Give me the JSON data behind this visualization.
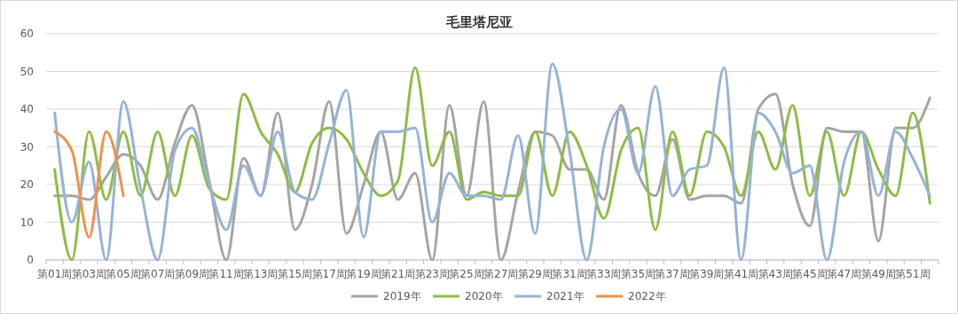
{
  "chart_data": {
    "type": "line",
    "title": "毛里塔尼亚",
    "categories": [
      "第01周",
      null,
      "第03周",
      null,
      "第05周",
      null,
      "第07周",
      null,
      "第09周",
      null,
      "第11周",
      null,
      "第13周",
      null,
      "第15周",
      null,
      "第17周",
      null,
      "第19周",
      null,
      "第21周",
      null,
      "第23周",
      null,
      "第25周",
      null,
      "第27周",
      null,
      "第29周",
      null,
      "第31周",
      null,
      "第33周",
      null,
      "第35周",
      null,
      "第37周",
      null,
      "第39周",
      null,
      "第41周",
      null,
      "第43周",
      null,
      "第45周",
      null,
      "第47周",
      null,
      "第49周",
      null,
      "第51周",
      null
    ],
    "series": [
      {
        "name": "2019年",
        "color": "#a5a5a5",
        "values": [
          17,
          17,
          16,
          22,
          28,
          25,
          16,
          31,
          41,
          21,
          0,
          27,
          17,
          39,
          8,
          20,
          42,
          7,
          20,
          34,
          16,
          23,
          0,
          41,
          17,
          42,
          0,
          18,
          34,
          33,
          24,
          24,
          16,
          41,
          23,
          17,
          32,
          16,
          17,
          17,
          15,
          40,
          44,
          20,
          9,
          35,
          34,
          34,
          5,
          35,
          35,
          43
        ]
      },
      {
        "name": "2020年",
        "color": "#8fbc45",
        "values": [
          24,
          0,
          34,
          16,
          34,
          17,
          34,
          17,
          33,
          19,
          16,
          44,
          34,
          28,
          18,
          31,
          35,
          32,
          23,
          17,
          21,
          51,
          25,
          34,
          16,
          18,
          17,
          17,
          34,
          17,
          34,
          25,
          11,
          29,
          35,
          8,
          34,
          17,
          34,
          30,
          17,
          34,
          24,
          41,
          17,
          34,
          17,
          34,
          24,
          17,
          39,
          15
        ]
      },
      {
        "name": "2021年",
        "color": "#95b3d7",
        "values": [
          39,
          10,
          26,
          0,
          42,
          19,
          0,
          29,
          35,
          20,
          8,
          25,
          17,
          34,
          18,
          16,
          31,
          45,
          6,
          34,
          34,
          35,
          10,
          23,
          17,
          17,
          16,
          33,
          7,
          52,
          29,
          0,
          30,
          40,
          23,
          46,
          17,
          24,
          25,
          51,
          0,
          39,
          34,
          23,
          25,
          0,
          26,
          34,
          17,
          34,
          27,
          17
        ]
      },
      {
        "name": "2022年",
        "color": "#f0914a",
        "values": [
          34,
          29,
          6,
          34,
          17,
          null,
          null,
          null,
          null,
          null,
          null,
          null,
          null,
          null,
          null,
          null,
          null,
          null,
          null,
          null,
          null,
          null,
          null,
          null,
          null,
          null,
          null,
          null,
          null,
          null,
          null,
          null,
          null,
          null,
          null,
          null,
          null,
          null,
          null,
          null,
          null,
          null,
          null,
          null,
          null,
          null,
          null,
          null,
          null,
          null,
          null,
          null
        ]
      }
    ],
    "ylim": [
      0,
      60
    ],
    "yticks": [
      0,
      10,
      20,
      30,
      40,
      50,
      60
    ],
    "grid": "y",
    "legend": "bottom"
  }
}
